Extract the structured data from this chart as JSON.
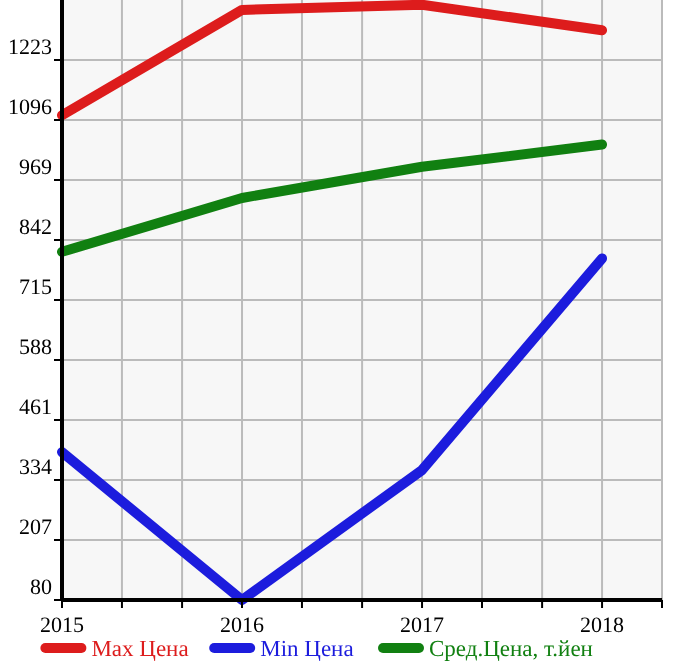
{
  "chart_data": {
    "type": "line",
    "x": [
      2015,
      2016,
      2017,
      2018
    ],
    "series": [
      {
        "name": "Max Цена",
        "color": "#dd1c1c",
        "values": [
          1106,
          1329,
          1340,
          1286
        ]
      },
      {
        "name": "Min Цена",
        "color": "#1c1cdd",
        "values": [
          393,
          80,
          355,
          803
        ]
      },
      {
        "name": "Сред.Цена, т.йен",
        "color": "#118011",
        "values": [
          817,
          931,
          997,
          1044
        ]
      }
    ],
    "xlim": [
      2015,
      2018.333
    ],
    "xticks": [
      2015,
      {
        "value": 2015.333,
        "label": null
      },
      {
        "value": 2015.667,
        "label": null
      },
      2016,
      {
        "value": 2016.333,
        "label": null
      },
      {
        "value": 2016.667,
        "label": null
      },
      2017,
      {
        "value": 2017.333,
        "label": null
      },
      {
        "value": 2017.667,
        "label": null
      },
      2018,
      {
        "value": 2018.333,
        "label": null
      }
    ],
    "ylim": [
      80,
      1350
    ],
    "yticks": [
      80,
      207,
      334,
      461,
      588,
      715,
      842,
      969,
      1096,
      1223
    ],
    "grid": true,
    "legend": "bottom",
    "marker": "none",
    "line_style": "solid"
  }
}
